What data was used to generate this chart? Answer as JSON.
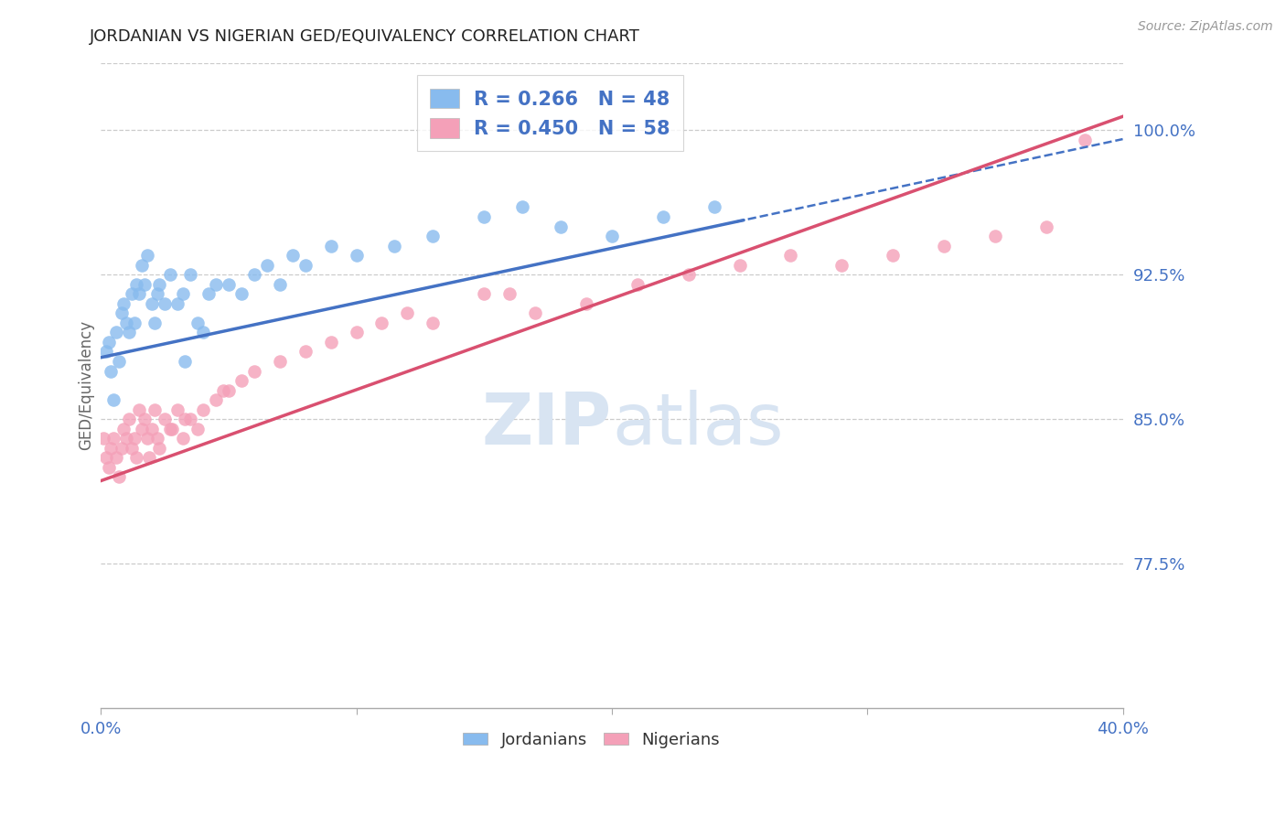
{
  "title": "JORDANIAN VS NIGERIAN GED/EQUIVALENCY CORRELATION CHART",
  "source": "Source: ZipAtlas.com",
  "ylabel": "GED/Equivalency",
  "xlim": [
    0.0,
    40.0
  ],
  "ylim": [
    70.0,
    103.5
  ],
  "yticks": [
    77.5,
    85.0,
    92.5,
    100.0
  ],
  "ytick_labels": [
    "77.5%",
    "85.0%",
    "92.5%",
    "100.0%"
  ],
  "jordanian_color": "#88BBEE",
  "nigerian_color": "#F4A0B8",
  "jordanian_line_color": "#4472C4",
  "nigerian_line_color": "#D95070",
  "R_jordan": 0.266,
  "N_jordan": 48,
  "R_nigeria": 0.45,
  "N_nigeria": 58,
  "jordan_x": [
    0.2,
    0.3,
    0.4,
    0.5,
    0.6,
    0.7,
    0.8,
    0.9,
    1.0,
    1.1,
    1.2,
    1.3,
    1.4,
    1.5,
    1.6,
    1.7,
    1.8,
    2.0,
    2.1,
    2.2,
    2.3,
    2.5,
    2.7,
    3.0,
    3.2,
    3.5,
    3.8,
    4.2,
    4.5,
    5.0,
    5.5,
    6.0,
    6.5,
    7.0,
    7.5,
    8.0,
    9.0,
    10.0,
    11.5,
    13.0,
    15.0,
    16.5,
    18.0,
    20.0,
    22.0,
    24.0,
    3.3,
    4.0
  ],
  "jordan_y": [
    88.5,
    89.0,
    87.5,
    86.0,
    89.5,
    88.0,
    90.5,
    91.0,
    90.0,
    89.5,
    91.5,
    90.0,
    92.0,
    91.5,
    93.0,
    92.0,
    93.5,
    91.0,
    90.0,
    91.5,
    92.0,
    91.0,
    92.5,
    91.0,
    91.5,
    92.5,
    90.0,
    91.5,
    92.0,
    92.0,
    91.5,
    92.5,
    93.0,
    92.0,
    93.5,
    93.0,
    94.0,
    93.5,
    94.0,
    94.5,
    95.5,
    96.0,
    95.0,
    94.5,
    95.5,
    96.0,
    88.0,
    89.5
  ],
  "nigeria_x": [
    0.1,
    0.2,
    0.3,
    0.4,
    0.5,
    0.6,
    0.7,
    0.8,
    0.9,
    1.0,
    1.1,
    1.2,
    1.3,
    1.4,
    1.5,
    1.6,
    1.7,
    1.8,
    1.9,
    2.0,
    2.1,
    2.2,
    2.3,
    2.5,
    2.7,
    3.0,
    3.2,
    3.5,
    3.8,
    4.0,
    4.5,
    5.0,
    5.5,
    6.0,
    7.0,
    8.0,
    9.0,
    10.0,
    11.0,
    12.0,
    13.0,
    15.0,
    17.0,
    19.0,
    21.0,
    23.0,
    25.0,
    27.0,
    29.0,
    31.0,
    33.0,
    35.0,
    37.0,
    38.5,
    2.8,
    3.3,
    4.8,
    16.0
  ],
  "nigeria_y": [
    84.0,
    83.0,
    82.5,
    83.5,
    84.0,
    83.0,
    82.0,
    83.5,
    84.5,
    84.0,
    85.0,
    83.5,
    84.0,
    83.0,
    85.5,
    84.5,
    85.0,
    84.0,
    83.0,
    84.5,
    85.5,
    84.0,
    83.5,
    85.0,
    84.5,
    85.5,
    84.0,
    85.0,
    84.5,
    85.5,
    86.0,
    86.5,
    87.0,
    87.5,
    88.0,
    88.5,
    89.0,
    89.5,
    90.0,
    90.5,
    90.0,
    91.5,
    90.5,
    91.0,
    92.0,
    92.5,
    93.0,
    93.5,
    93.0,
    93.5,
    94.0,
    94.5,
    95.0,
    99.5,
    84.5,
    85.0,
    86.5,
    91.5
  ],
  "background_color": "#FFFFFF",
  "grid_color": "#CCCCCC",
  "tick_color": "#4472C4",
  "watermark_color": "#D8E4F2"
}
